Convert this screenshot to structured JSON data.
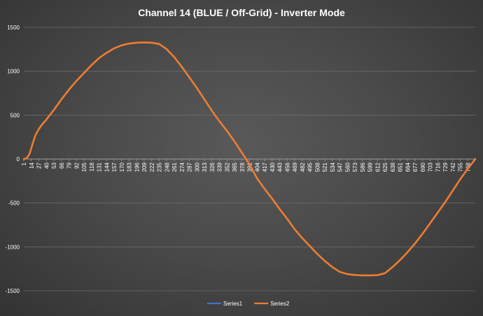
{
  "chart_data": {
    "type": "line",
    "title": "Channel 14 (BLUE / Off-Grid) - Inverter Mode",
    "xlabel": "",
    "ylabel": "",
    "ylim": [
      -1500,
      1500
    ],
    "y_ticks": [
      1500,
      1000,
      500,
      0,
      -500,
      -1000,
      -1500
    ],
    "x_range": [
      1,
      781
    ],
    "x_tick_labels": [
      "1",
      "14",
      "27",
      "40",
      "53",
      "66",
      "79",
      "92",
      "105",
      "118",
      "131",
      "144",
      "157",
      "170",
      "183",
      "196",
      "209",
      "222",
      "235",
      "248",
      "261",
      "274",
      "287",
      "300",
      "313",
      "326",
      "339",
      "352",
      "365",
      "378",
      "391",
      "404",
      "417",
      "430",
      "443",
      "456",
      "469",
      "482",
      "495",
      "508",
      "521",
      "534",
      "547",
      "560",
      "573",
      "586",
      "599",
      "612",
      "625",
      "638",
      "651",
      "664",
      "677",
      "690",
      "703",
      "716",
      "729",
      "742",
      "755",
      "768"
    ],
    "grid": true,
    "legend_position": "bottom",
    "series": [
      {
        "name": "Series1",
        "color": "#4472c4",
        "points": []
      },
      {
        "name": "Series2",
        "color": "#ed7d31",
        "points": [
          [
            1,
            0
          ],
          [
            6,
            10
          ],
          [
            11,
            60
          ],
          [
            16,
            170
          ],
          [
            21,
            270
          ],
          [
            26,
            330
          ],
          [
            31,
            380
          ],
          [
            40,
            450
          ],
          [
            53,
            560
          ],
          [
            66,
            680
          ],
          [
            79,
            790
          ],
          [
            92,
            890
          ],
          [
            105,
            980
          ],
          [
            118,
            1070
          ],
          [
            131,
            1150
          ],
          [
            144,
            1210
          ],
          [
            157,
            1260
          ],
          [
            170,
            1295
          ],
          [
            183,
            1315
          ],
          [
            196,
            1325
          ],
          [
            209,
            1328
          ],
          [
            222,
            1325
          ],
          [
            235,
            1310
          ],
          [
            248,
            1250
          ],
          [
            261,
            1160
          ],
          [
            274,
            1050
          ],
          [
            287,
            930
          ],
          [
            300,
            810
          ],
          [
            313,
            680
          ],
          [
            326,
            550
          ],
          [
            339,
            430
          ],
          [
            352,
            320
          ],
          [
            365,
            200
          ],
          [
            378,
            70
          ],
          [
            391,
            -60
          ],
          [
            404,
            -220
          ],
          [
            417,
            -340
          ],
          [
            430,
            -450
          ],
          [
            443,
            -570
          ],
          [
            456,
            -680
          ],
          [
            469,
            -800
          ],
          [
            482,
            -900
          ],
          [
            495,
            -990
          ],
          [
            508,
            -1080
          ],
          [
            521,
            -1160
          ],
          [
            534,
            -1230
          ],
          [
            547,
            -1285
          ],
          [
            560,
            -1310
          ],
          [
            573,
            -1320
          ],
          [
            586,
            -1325
          ],
          [
            599,
            -1325
          ],
          [
            612,
            -1322
          ],
          [
            625,
            -1300
          ],
          [
            638,
            -1230
          ],
          [
            651,
            -1150
          ],
          [
            664,
            -1060
          ],
          [
            677,
            -960
          ],
          [
            690,
            -850
          ],
          [
            703,
            -730
          ],
          [
            716,
            -610
          ],
          [
            729,
            -490
          ],
          [
            742,
            -360
          ],
          [
            755,
            -230
          ],
          [
            768,
            -110
          ],
          [
            781,
            0
          ]
        ]
      }
    ]
  }
}
